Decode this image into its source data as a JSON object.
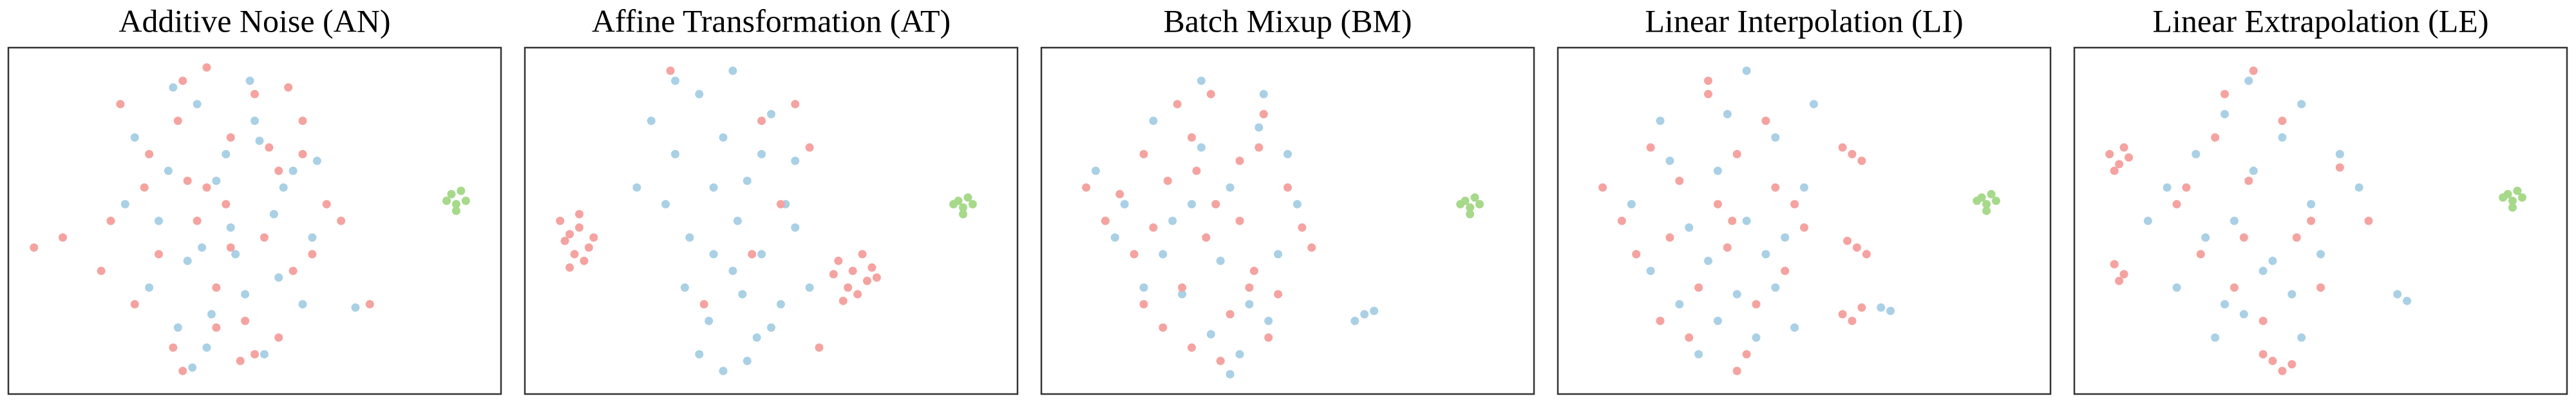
{
  "chart_data": [
    {
      "type": "scatter",
      "title": "Additive Noise (AN)",
      "xlim": [
        0,
        100
      ],
      "ylim": [
        0,
        100
      ],
      "series": [
        {
          "color": "#a9d0e5",
          "x": [
            25,
            32,
            38,
            44,
            50,
            56,
            62,
            30,
            36,
            42,
            48,
            54,
            60,
            28,
            34,
            40,
            46,
            52,
            58,
            33,
            45,
            55,
            41,
            49,
            37,
            63,
            23,
            71,
            39,
            51
          ],
          "y": [
            75,
            65,
            85,
            70,
            80,
            60,
            45,
            50,
            38,
            62,
            28,
            52,
            25,
            30,
            18,
            12,
            40,
            10,
            65,
            90,
            48,
            33,
            22,
            92,
            6,
            68,
            55,
            24,
            42,
            74
          ]
        },
        {
          "color": "#f4a3a0",
          "x": [
            22,
            28,
            35,
            40,
            45,
            50,
            55,
            60,
            65,
            30,
            38,
            42,
            48,
            52,
            58,
            25,
            33,
            47,
            55,
            62,
            20,
            36,
            44,
            53,
            40,
            34,
            50,
            57,
            27,
            45,
            10,
            4,
            68,
            74,
            35,
            42,
            60,
            18
          ],
          "y": [
            85,
            70,
            92,
            60,
            75,
            88,
            65,
            80,
            55,
            40,
            50,
            30,
            20,
            45,
            35,
            25,
            12,
            8,
            15,
            40,
            50,
            62,
            55,
            72,
            96,
            80,
            10,
            90,
            60,
            42,
            45,
            42,
            50,
            25,
            5,
            18,
            70,
            35
          ]
        },
        {
          "color": "#a6d98a",
          "x": [
            91,
            92,
            93,
            90,
            92,
            94
          ],
          "y": [
            58,
            55,
            59,
            56,
            53,
            56
          ]
        }
      ]
    },
    {
      "type": "scatter",
      "title": "Affine Transformation (AT)",
      "xlim": [
        0,
        100
      ],
      "ylim": [
        0,
        100
      ],
      "series": [
        {
          "color": "#a9d0e5",
          "x": [
            25,
            30,
            35,
            40,
            45,
            50,
            55,
            28,
            33,
            38,
            43,
            48,
            53,
            58,
            22,
            32,
            37,
            42,
            47,
            52,
            35,
            40,
            45,
            50,
            30,
            42,
            48,
            38,
            55,
            44
          ],
          "y": [
            80,
            70,
            88,
            75,
            62,
            82,
            68,
            55,
            45,
            60,
            50,
            40,
            55,
            30,
            60,
            30,
            20,
            35,
            15,
            25,
            10,
            5,
            8,
            18,
            92,
            95,
            70,
            40,
            48,
            28
          ]
        },
        {
          "color": "#f4a3a0",
          "x": [
            6,
            8,
            10,
            12,
            9,
            7,
            11,
            13,
            8,
            10,
            64,
            67,
            70,
            66,
            68,
            71,
            63,
            69,
            65,
            72,
            29,
            48,
            55,
            58,
            46,
            36,
            60,
            52
          ],
          "y": [
            50,
            46,
            48,
            42,
            40,
            44,
            38,
            45,
            36,
            52,
            38,
            35,
            32,
            30,
            28,
            36,
            34,
            40,
            26,
            33,
            95,
            80,
            85,
            72,
            40,
            25,
            12,
            55
          ]
        },
        {
          "color": "#a6d98a",
          "x": [
            89,
            90,
            91,
            88,
            90,
            92
          ],
          "y": [
            56,
            54,
            57,
            55,
            52,
            55
          ]
        }
      ]
    },
    {
      "type": "scatter",
      "title": "Batch Mixup (BM)",
      "xlim": [
        0,
        100
      ],
      "ylim": [
        0,
        100
      ],
      "series": [
        {
          "color": "#a9d0e5",
          "x": [
            10,
            16,
            22,
            26,
            32,
            38,
            44,
            50,
            14,
            24,
            30,
            36,
            42,
            48,
            28,
            34,
            40,
            46,
            52,
            38,
            20,
            66,
            64,
            68,
            45,
            32
          ],
          "y": [
            65,
            55,
            80,
            50,
            92,
            60,
            78,
            70,
            45,
            40,
            55,
            38,
            25,
            40,
            28,
            16,
            10,
            20,
            55,
            4,
            30,
            22,
            20,
            23,
            88,
            72
          ]
        },
        {
          "color": "#f4a3a0",
          "x": [
            8,
            12,
            15,
            20,
            25,
            30,
            35,
            40,
            45,
            50,
            18,
            22,
            28,
            33,
            38,
            43,
            48,
            53,
            24,
            30,
            36,
            42,
            46,
            34,
            40,
            27,
            55,
            31,
            44,
            20
          ],
          "y": [
            60,
            50,
            58,
            70,
            62,
            75,
            55,
            68,
            82,
            60,
            40,
            48,
            30,
            45,
            22,
            35,
            28,
            48,
            18,
            12,
            8,
            30,
            15,
            88,
            50,
            85,
            42,
            65,
            72,
            25
          ]
        },
        {
          "color": "#a6d98a",
          "x": [
            87,
            88,
            89,
            86,
            88,
            90
          ],
          "y": [
            56,
            54,
            57,
            55,
            52,
            55
          ]
        }
      ]
    },
    {
      "type": "scatter",
      "title": "Linear Interpolation (LI)",
      "xlim": [
        0,
        100
      ],
      "ylim": [
        0,
        100
      ],
      "series": [
        {
          "color": "#a9d0e5",
          "x": [
            14,
            20,
            26,
            32,
            38,
            44,
            50,
            18,
            24,
            30,
            36,
            42,
            48,
            28,
            34,
            40,
            46,
            22,
            38,
            44,
            66,
            68,
            52,
            32
          ],
          "y": [
            55,
            80,
            48,
            65,
            50,
            75,
            60,
            35,
            25,
            38,
            28,
            40,
            18,
            10,
            82,
            15,
            45,
            68,
            95,
            30,
            24,
            23,
            85,
            20
          ]
        },
        {
          "color": "#f4a3a0",
          "x": [
            8,
            12,
            18,
            24,
            30,
            36,
            42,
            48,
            15,
            22,
            28,
            34,
            40,
            46,
            20,
            26,
            32,
            38,
            44,
            30,
            36,
            58,
            60,
            62,
            59,
            61,
            63,
            58,
            60,
            62,
            35,
            50
          ],
          "y": [
            60,
            50,
            72,
            62,
            88,
            70,
            80,
            55,
            40,
            45,
            30,
            42,
            25,
            35,
            20,
            15,
            55,
            10,
            60,
            92,
            5,
            72,
            70,
            68,
            44,
            42,
            40,
            22,
            20,
            24,
            50,
            48
          ]
        },
        {
          "color": "#a6d98a",
          "x": [
            87,
            88,
            89,
            86,
            88,
            90
          ],
          "y": [
            57,
            55,
            58,
            56,
            53,
            56
          ]
        }
      ]
    },
    {
      "type": "scatter",
      "title": "Linear Extrapolation (LE)",
      "xlim": [
        0,
        100
      ],
      "ylim": [
        0,
        100
      ],
      "series": [
        {
          "color": "#a9d0e5",
          "x": [
            14,
            18,
            24,
            30,
            36,
            42,
            48,
            54,
            20,
            26,
            32,
            38,
            44,
            50,
            28,
            34,
            40,
            46,
            35,
            58,
            66,
            68,
            30,
            46
          ],
          "y": [
            50,
            60,
            70,
            82,
            65,
            75,
            55,
            70,
            30,
            45,
            50,
            35,
            28,
            40,
            15,
            22,
            38,
            15,
            92,
            60,
            28,
            26,
            25,
            85
          ]
        },
        {
          "color": "#f4a3a0",
          "x": [
            6,
            8,
            10,
            7,
            9,
            7,
            9,
            8,
            20,
            28,
            35,
            42,
            48,
            54,
            25,
            32,
            38,
            45,
            30,
            36,
            40,
            42,
            38,
            44,
            50,
            22,
            60,
            34
          ],
          "y": [
            70,
            67,
            69,
            65,
            72,
            37,
            34,
            32,
            55,
            75,
            62,
            80,
            50,
            66,
            40,
            30,
            20,
            45,
            88,
            95,
            8,
            5,
            10,
            7,
            30,
            60,
            50,
            45
          ]
        },
        {
          "color": "#a6d98a",
          "x": [
            89,
            90,
            91,
            88,
            90,
            92
          ],
          "y": [
            58,
            56,
            59,
            57,
            54,
            57
          ]
        }
      ]
    }
  ]
}
